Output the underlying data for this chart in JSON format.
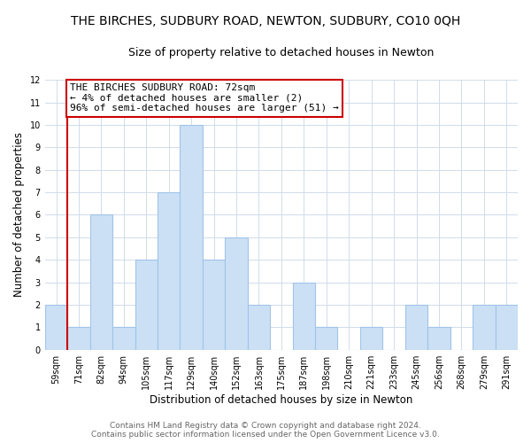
{
  "title": "THE BIRCHES, SUDBURY ROAD, NEWTON, SUDBURY, CO10 0QH",
  "subtitle": "Size of property relative to detached houses in Newton",
  "xlabel": "Distribution of detached houses by size in Newton",
  "ylabel": "Number of detached properties",
  "bin_labels": [
    "59sqm",
    "71sqm",
    "82sqm",
    "94sqm",
    "105sqm",
    "117sqm",
    "129sqm",
    "140sqm",
    "152sqm",
    "163sqm",
    "175sqm",
    "187sqm",
    "198sqm",
    "210sqm",
    "221sqm",
    "233sqm",
    "245sqm",
    "256sqm",
    "268sqm",
    "279sqm",
    "291sqm"
  ],
  "bar_heights": [
    2,
    1,
    6,
    1,
    4,
    7,
    10,
    4,
    5,
    2,
    0,
    3,
    1,
    0,
    1,
    0,
    2,
    1,
    0,
    2,
    2
  ],
  "bar_color": "#cce0f5",
  "bar_edge_color": "#a0c4e8",
  "property_line_color": "#cc0000",
  "annotation_text": "THE BIRCHES SUDBURY ROAD: 72sqm\n← 4% of detached houses are smaller (2)\n96% of semi-detached houses are larger (51) →",
  "annotation_box_color": "#ffffff",
  "annotation_box_edge": "#cc0000",
  "ylim": [
    0,
    12
  ],
  "yticks": [
    0,
    1,
    2,
    3,
    4,
    5,
    6,
    7,
    8,
    9,
    10,
    11,
    12
  ],
  "footer_line1": "Contains HM Land Registry data © Crown copyright and database right 2024.",
  "footer_line2": "Contains public sector information licensed under the Open Government Licence v3.0.",
  "bg_color": "#ffffff",
  "grid_color": "#d0dcea",
  "title_fontsize": 10,
  "subtitle_fontsize": 9,
  "axis_label_fontsize": 8.5,
  "tick_fontsize": 7,
  "annotation_fontsize": 8,
  "footer_fontsize": 6.5
}
